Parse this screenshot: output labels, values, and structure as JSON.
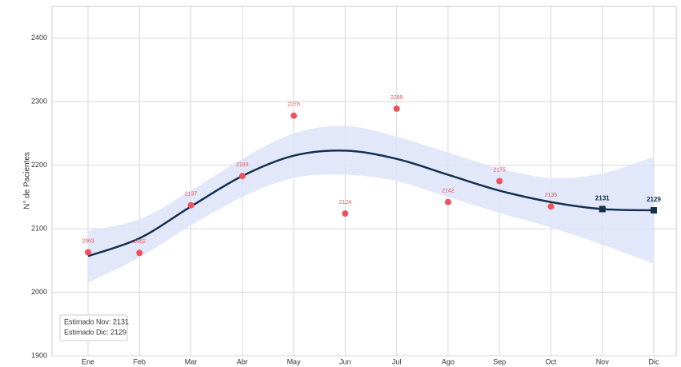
{
  "chart_data": {
    "type": "line",
    "y_label": "N° de Pacientes",
    "categories": [
      "Ene",
      "Feb",
      "Mar",
      "Abr",
      "May",
      "Jun",
      "Jul",
      "Ago",
      "Sep",
      "Oct",
      "Nov",
      "Dic"
    ],
    "ylim": [
      1900,
      2450
    ],
    "yticks": [
      1900,
      2000,
      2100,
      2200,
      2300,
      2400
    ],
    "grid": true,
    "points": {
      "color": "#f0525a",
      "values": [
        2063,
        2062,
        2137,
        2183,
        2278,
        2124,
        2289,
        2142,
        2175,
        2135,
        null,
        null
      ]
    },
    "estimates": {
      "color": "#13304f",
      "values": [
        null,
        null,
        null,
        null,
        null,
        null,
        null,
        null,
        null,
        null,
        2131,
        2129
      ]
    },
    "fit": {
      "color": "#13304f",
      "values": [
        2057,
        2085,
        2135,
        2183,
        2215,
        2223,
        2210,
        2185,
        2160,
        2142,
        2131,
        2129
      ]
    },
    "band": {
      "color": "#dde4f8",
      "upper": [
        2097,
        2115,
        2160,
        2210,
        2250,
        2262,
        2245,
        2220,
        2195,
        2180,
        2187,
        2213
      ],
      "lower": [
        2015,
        2055,
        2105,
        2150,
        2180,
        2185,
        2175,
        2150,
        2125,
        2102,
        2075,
        2045
      ]
    },
    "annotations": [
      "Estimado Nov: 2131",
      "Estimado Dic: 2129"
    ]
  }
}
